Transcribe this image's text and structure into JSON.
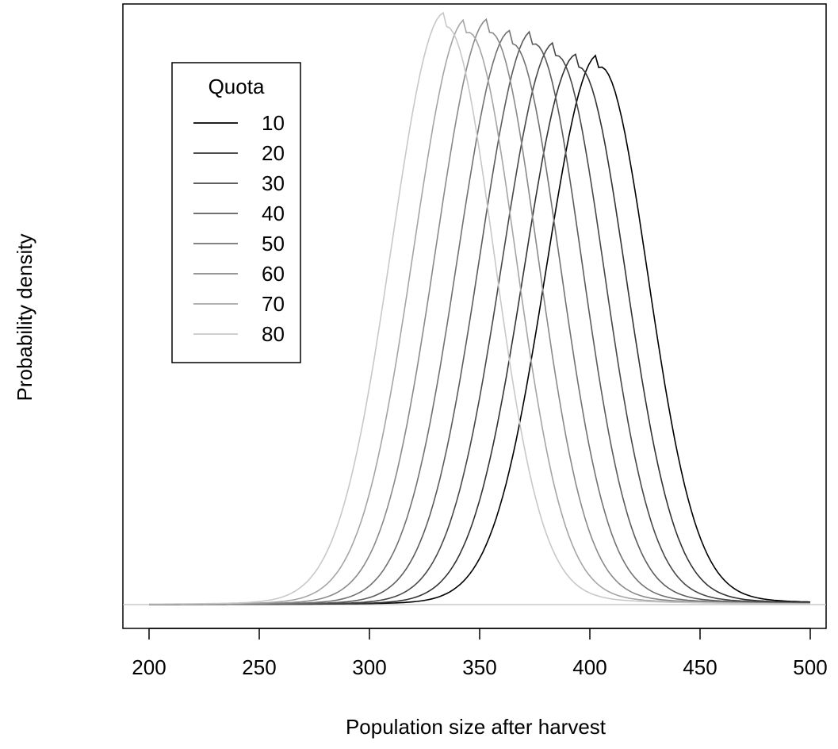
{
  "chart_data": {
    "type": "line",
    "title": "",
    "xlabel": "Population size after harvest",
    "ylabel": "Probability density",
    "xlim": [
      200,
      500
    ],
    "xticks": [
      "200",
      "250",
      "300",
      "350",
      "400",
      "450",
      "500"
    ],
    "ylim": [
      0,
      1.0
    ],
    "legend": {
      "title": "Quota",
      "position": "top-left"
    },
    "series": [
      {
        "name": "10",
        "color": "#000000",
        "peak_x": 404,
        "peak_y": 0.93
      },
      {
        "name": "20",
        "color": "#333333",
        "peak_x": 394,
        "peak_y": 0.93
      },
      {
        "name": "30",
        "color": "#484848",
        "peak_x": 384,
        "peak_y": 0.95
      },
      {
        "name": "40",
        "color": "#5c5c5c",
        "peak_x": 374,
        "peak_y": 0.97
      },
      {
        "name": "50",
        "color": "#727272",
        "peak_x": 364,
        "peak_y": 0.97
      },
      {
        "name": "60",
        "color": "#8a8a8a",
        "peak_x": 354,
        "peak_y": 0.99
      },
      {
        "name": "70",
        "color": "#a5a5a5",
        "peak_x": 344,
        "peak_y": 0.99
      },
      {
        "name": "80",
        "color": "#c8c8c8",
        "peak_x": 334,
        "peak_y": 1.0
      }
    ]
  }
}
